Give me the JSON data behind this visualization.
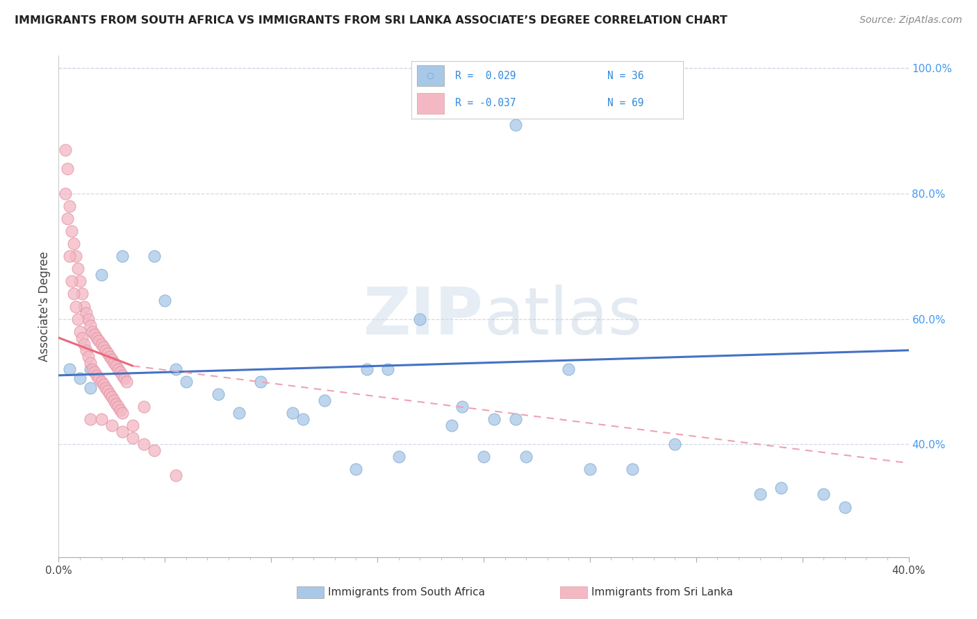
{
  "title": "IMMIGRANTS FROM SOUTH AFRICA VS IMMIGRANTS FROM SRI LANKA ASSOCIATE’S DEGREE CORRELATION CHART",
  "source": "Source: ZipAtlas.com",
  "ylabel": "Associate's Degree",
  "watermark": "ZIPatlas",
  "blue_color": "#a8c8e8",
  "pink_color": "#f4b8c4",
  "trend_blue": "#4472c4",
  "trend_pink": "#e8697d",
  "trend_pink_dash": "#f0a0b0",
  "blue_scatter": [
    [
      0.5,
      52.0
    ],
    [
      1.0,
      50.5
    ],
    [
      1.5,
      52.0
    ],
    [
      2.0,
      67.0
    ],
    [
      3.0,
      70.0
    ],
    [
      4.5,
      70.0
    ],
    [
      5.0,
      63.0
    ],
    [
      5.5,
      52.0
    ],
    [
      6.0,
      50.0
    ],
    [
      7.5,
      48.0
    ],
    [
      8.5,
      45.0
    ],
    [
      9.5,
      50.0
    ],
    [
      11.0,
      45.0
    ],
    [
      11.5,
      44.0
    ],
    [
      12.5,
      47.0
    ],
    [
      14.5,
      52.0
    ],
    [
      15.5,
      52.0
    ],
    [
      17.0,
      60.0
    ],
    [
      18.5,
      43.0
    ],
    [
      19.0,
      46.0
    ],
    [
      20.5,
      44.0
    ],
    [
      21.5,
      44.0
    ],
    [
      24.0,
      52.0
    ],
    [
      14.0,
      36.0
    ],
    [
      16.0,
      38.0
    ],
    [
      20.0,
      38.0
    ],
    [
      22.0,
      38.0
    ],
    [
      25.0,
      36.0
    ],
    [
      27.0,
      36.0
    ],
    [
      29.0,
      40.0
    ],
    [
      33.0,
      32.0
    ],
    [
      36.0,
      32.0
    ],
    [
      34.0,
      33.0
    ],
    [
      37.0,
      30.0
    ],
    [
      21.5,
      91.0
    ],
    [
      1.5,
      49.0
    ]
  ],
  "pink_scatter": [
    [
      0.3,
      87.0
    ],
    [
      0.4,
      84.0
    ],
    [
      0.5,
      78.0
    ],
    [
      0.6,
      74.0
    ],
    [
      0.7,
      72.0
    ],
    [
      0.8,
      70.0
    ],
    [
      0.9,
      68.0
    ],
    [
      1.0,
      66.0
    ],
    [
      1.1,
      64.0
    ],
    [
      1.2,
      62.0
    ],
    [
      1.3,
      61.0
    ],
    [
      1.4,
      60.0
    ],
    [
      1.5,
      59.0
    ],
    [
      1.6,
      58.0
    ],
    [
      1.7,
      57.5
    ],
    [
      1.8,
      57.0
    ],
    [
      1.9,
      56.5
    ],
    [
      2.0,
      56.0
    ],
    [
      2.1,
      55.5
    ],
    [
      2.2,
      55.0
    ],
    [
      2.3,
      54.5
    ],
    [
      2.4,
      54.0
    ],
    [
      2.5,
      53.5
    ],
    [
      2.6,
      53.0
    ],
    [
      2.7,
      52.5
    ],
    [
      2.8,
      52.0
    ],
    [
      2.9,
      51.5
    ],
    [
      3.0,
      51.0
    ],
    [
      3.1,
      50.5
    ],
    [
      3.2,
      50.0
    ],
    [
      0.3,
      80.0
    ],
    [
      0.4,
      76.0
    ],
    [
      0.5,
      70.0
    ],
    [
      0.6,
      66.0
    ],
    [
      0.7,
      64.0
    ],
    [
      0.8,
      62.0
    ],
    [
      0.9,
      60.0
    ],
    [
      1.0,
      58.0
    ],
    [
      1.1,
      57.0
    ],
    [
      1.2,
      56.0
    ],
    [
      1.3,
      55.0
    ],
    [
      1.4,
      54.0
    ],
    [
      1.5,
      53.0
    ],
    [
      1.6,
      52.0
    ],
    [
      1.7,
      51.5
    ],
    [
      1.8,
      51.0
    ],
    [
      1.9,
      50.5
    ],
    [
      2.0,
      50.0
    ],
    [
      2.1,
      49.5
    ],
    [
      2.2,
      49.0
    ],
    [
      2.3,
      48.5
    ],
    [
      2.4,
      48.0
    ],
    [
      2.5,
      47.5
    ],
    [
      2.6,
      47.0
    ],
    [
      2.7,
      46.5
    ],
    [
      2.8,
      46.0
    ],
    [
      2.9,
      45.5
    ],
    [
      3.0,
      45.0
    ],
    [
      3.5,
      43.0
    ],
    [
      4.0,
      46.0
    ],
    [
      1.5,
      44.0
    ],
    [
      2.0,
      44.0
    ],
    [
      2.5,
      43.0
    ],
    [
      3.0,
      42.0
    ],
    [
      3.5,
      41.0
    ],
    [
      4.0,
      40.0
    ],
    [
      4.5,
      39.0
    ],
    [
      5.5,
      35.0
    ]
  ],
  "xlim": [
    0.0,
    40.0
  ],
  "ylim": [
    22.0,
    102.0
  ],
  "yticks": [
    40.0,
    60.0,
    80.0,
    100.0
  ],
  "ytick_labels": [
    "40.0%",
    "60.0%",
    "80.0%",
    "100.0%"
  ],
  "grid_color": "#d0d8e8",
  "source_color": "#888888",
  "title_color": "#222222"
}
